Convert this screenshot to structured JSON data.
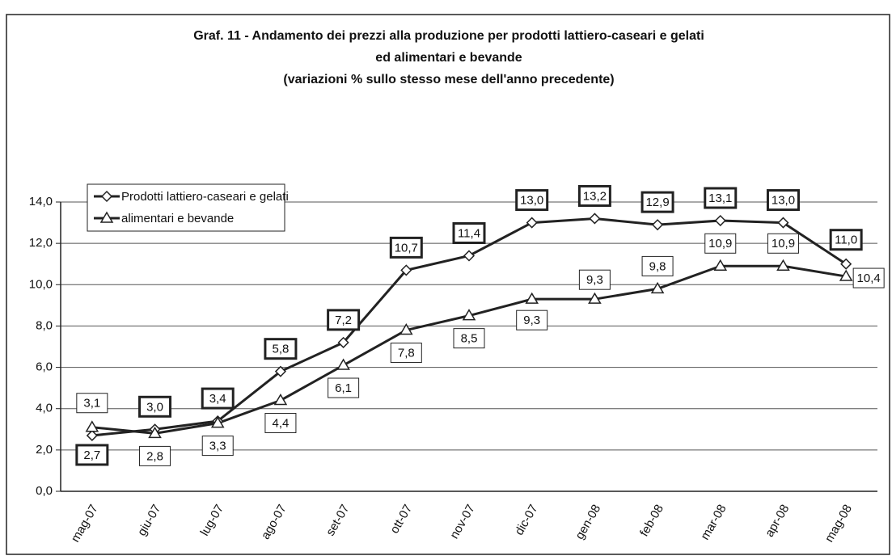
{
  "chart_data": {
    "type": "line",
    "title": [
      "Graf. 11 - Andamento dei prezzi alla produzione per prodotti lattiero-caseari e gelati",
      "ed alimentari e bevande",
      "(variazioni % sullo stesso mese dell'anno precedente)"
    ],
    "categories": [
      "mag-07",
      "giu-07",
      "lug-07",
      "ago-07",
      "set-07",
      "ott-07",
      "nov-07",
      "dic-07",
      "gen-08",
      "feb-08",
      "mar-08",
      "apr-08",
      "mag-08"
    ],
    "series": [
      {
        "name": "Prodotti lattiero-caseari e gelati",
        "color": "#222",
        "marker": "diamond",
        "values": [
          2.7,
          3.0,
          3.4,
          5.8,
          7.2,
          10.7,
          11.4,
          13.0,
          13.2,
          12.9,
          13.1,
          13.0,
          11.0
        ],
        "value_labels": [
          "2,7",
          "3,0",
          "3,4",
          "5,8",
          "7,2",
          "10,7",
          "11,4",
          "13,0",
          "13,2",
          "12,9",
          "13,1",
          "13,0",
          "11,0"
        ]
      },
      {
        "name": "alimentari e bevande",
        "color": "#222",
        "marker": "triangle",
        "values": [
          3.1,
          2.8,
          3.3,
          4.4,
          6.1,
          7.8,
          8.5,
          9.3,
          9.3,
          9.8,
          10.9,
          10.9,
          10.4
        ],
        "value_labels": [
          "3,1",
          "2,8",
          "3,3",
          "4,4",
          "6,1",
          "7,8",
          "8,5",
          "9,3",
          "9,3",
          "9,8",
          "10,9",
          "10,9",
          "10,4"
        ]
      }
    ],
    "ylim": [
      0,
      14
    ],
    "yticks": [
      {
        "value": 0,
        "label": "0,0"
      },
      {
        "value": 2,
        "label": "2,0"
      },
      {
        "value": 4,
        "label": "4,0"
      },
      {
        "value": 6,
        "label": "6,0"
      },
      {
        "value": 8,
        "label": "8,0"
      },
      {
        "value": 10,
        "label": "10,0"
      },
      {
        "value": 12,
        "label": "12,0"
      },
      {
        "value": 14,
        "label": "14,0"
      }
    ],
    "grid": true,
    "legend": "top-left"
  }
}
